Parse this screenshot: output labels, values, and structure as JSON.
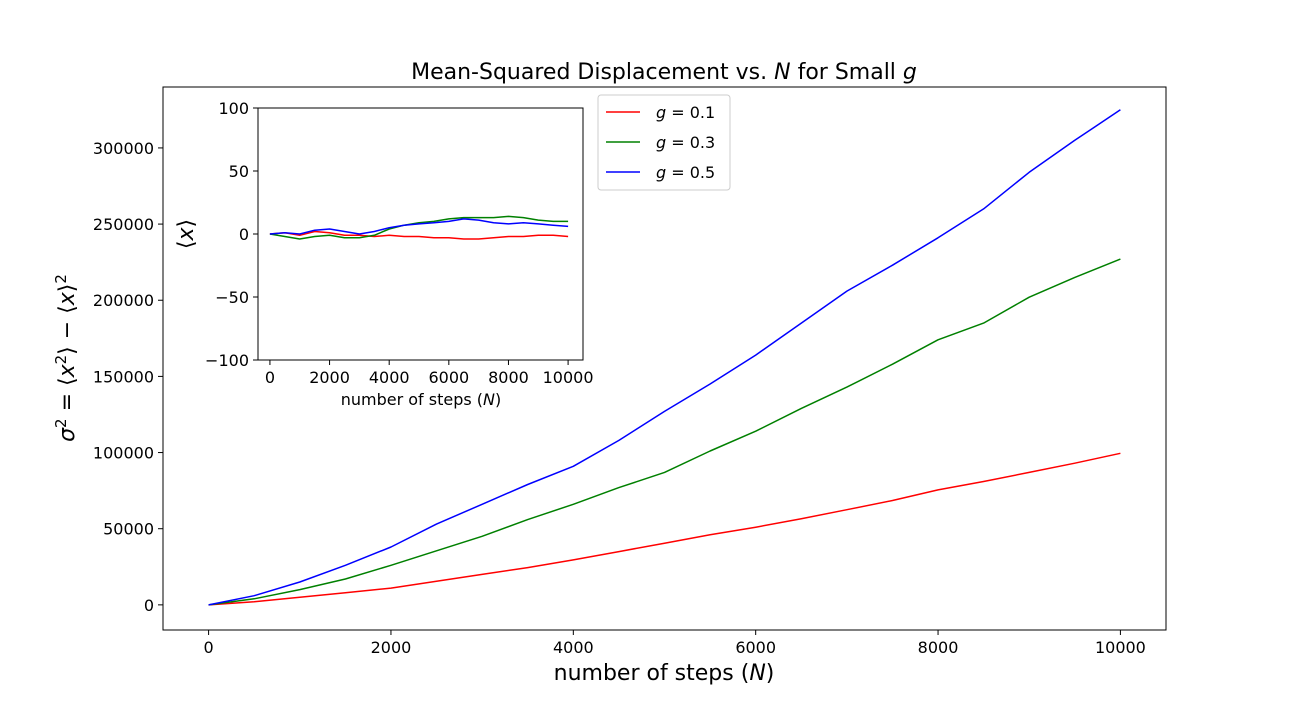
{
  "chart_data": [
    {
      "id": "main",
      "type": "line",
      "title": "Mean-Squared Displacement vs. N for Small g",
      "xlabel": "number of steps (N)",
      "ylabel": "σ² = ⟨x²⟩ − ⟨x⟩²",
      "xlim": [
        -500,
        10500
      ],
      "ylim": [
        -16500,
        340000
      ],
      "xticks": [
        0,
        2000,
        4000,
        6000,
        8000,
        10000
      ],
      "yticks": [
        0,
        50000,
        100000,
        150000,
        200000,
        250000,
        300000
      ],
      "legend_position": "upper-left-of-center",
      "series": [
        {
          "name": "g = 0.1",
          "color": "#ff0000",
          "x": [
            0,
            500,
            1000,
            1500,
            2000,
            2500,
            3000,
            3500,
            4000,
            4500,
            5000,
            5500,
            6000,
            6500,
            7000,
            7500,
            8000,
            8500,
            9000,
            9500,
            10000
          ],
          "y": [
            0,
            2000,
            5000,
            8000,
            11000,
            15500,
            20000,
            24500,
            29500,
            35000,
            40500,
            46000,
            51000,
            56500,
            62500,
            68500,
            75500,
            81000,
            87000,
            93000,
            99500
          ]
        },
        {
          "name": "g = 0.3",
          "color": "#008000",
          "x": [
            0,
            500,
            1000,
            1500,
            2000,
            2500,
            3000,
            3500,
            4000,
            4500,
            5000,
            5500,
            6000,
            6500,
            7000,
            7500,
            8000,
            8500,
            9000,
            9500,
            10000
          ],
          "y": [
            0,
            4000,
            10000,
            17000,
            26000,
            35500,
            45000,
            56000,
            66000,
            77000,
            87000,
            101000,
            114000,
            129000,
            143000,
            158000,
            174000,
            185000,
            202000,
            215000,
            227000
          ]
        },
        {
          "name": "g = 0.5",
          "color": "#0000ff",
          "x": [
            0,
            500,
            1000,
            1500,
            2000,
            2500,
            3000,
            3500,
            4000,
            4500,
            5000,
            5500,
            6000,
            6500,
            7000,
            7500,
            8000,
            8500,
            9000,
            9500,
            10000
          ],
          "y": [
            0,
            6000,
            15000,
            26000,
            38000,
            53000,
            66000,
            79000,
            91000,
            108000,
            127000,
            145000,
            164000,
            185000,
            206000,
            223000,
            241000,
            260000,
            284000,
            305000,
            325000
          ]
        }
      ]
    },
    {
      "id": "inset",
      "type": "line",
      "xlabel": "number of steps (N)",
      "ylabel": "⟨x⟩",
      "xlim": [
        -400,
        10500
      ],
      "ylim": [
        -100,
        100
      ],
      "xticks": [
        0,
        2000,
        4000,
        6000,
        8000,
        10000
      ],
      "yticks": [
        -100,
        -50,
        0,
        50,
        100
      ],
      "series": [
        {
          "name": "g = 0.1",
          "color": "#ff0000",
          "x": [
            0,
            500,
            1000,
            1500,
            2000,
            2500,
            3000,
            3500,
            4000,
            4500,
            5000,
            5500,
            6000,
            6500,
            7000,
            7500,
            8000,
            8500,
            9000,
            9500,
            10000
          ],
          "y": [
            0,
            1,
            -1,
            2,
            1,
            -1,
            -1,
            -2,
            -1,
            -2,
            -2,
            -3,
            -3,
            -4,
            -4,
            -3,
            -2,
            -2,
            -1,
            -1,
            -2
          ]
        },
        {
          "name": "g = 0.3",
          "color": "#008000",
          "x": [
            0,
            500,
            1000,
            1500,
            2000,
            2500,
            3000,
            3500,
            4000,
            4500,
            5000,
            5500,
            6000,
            6500,
            7000,
            7500,
            8000,
            8500,
            9000,
            9500,
            10000
          ],
          "y": [
            0,
            -2,
            -4,
            -2,
            -1,
            -3,
            -3,
            -1,
            4,
            7,
            9,
            10,
            12,
            13,
            13,
            13,
            14,
            13,
            11,
            10,
            10
          ]
        },
        {
          "name": "g = 0.5",
          "color": "#0000ff",
          "x": [
            0,
            500,
            1000,
            1500,
            2000,
            2500,
            3000,
            3500,
            4000,
            4500,
            5000,
            5500,
            6000,
            6500,
            7000,
            7500,
            8000,
            8500,
            9000,
            9500,
            10000
          ],
          "y": [
            0,
            1,
            0,
            3,
            4,
            2,
            0,
            2,
            5,
            7,
            8,
            9,
            10,
            12,
            11,
            9,
            8,
            9,
            8,
            7,
            6
          ]
        }
      ]
    }
  ]
}
